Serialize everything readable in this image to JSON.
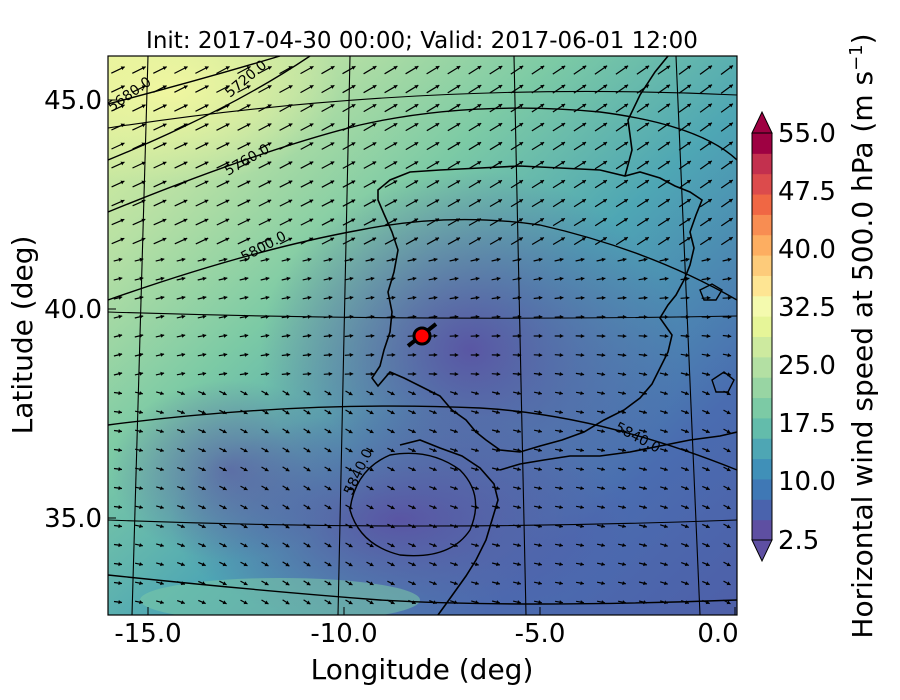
{
  "title": "Init: 2017-04-30 00:00; Valid: 2017-06-01 12:00",
  "x_axis": {
    "label": "Longitude (deg)",
    "ticks": [
      "-15.0",
      "-10.0",
      "-5.0",
      "0.0"
    ],
    "range": [
      -15.9,
      0.1
    ]
  },
  "y_axis": {
    "label": "Latitude (deg)",
    "ticks": [
      "35.0",
      "40.0",
      "45.0"
    ],
    "range": [
      32.6,
      46.0
    ]
  },
  "colorbar": {
    "label_text": "Horizontal wind speed at 500.0 hPa (m s",
    "label_exponent": "−1",
    "label_close": ")",
    "ticks": [
      "2.5",
      "10.0",
      "17.5",
      "25.0",
      "32.5",
      "40.0",
      "47.5",
      "55.0"
    ],
    "range": [
      2.5,
      55.0
    ],
    "extend": "both",
    "colors": [
      "#5e4fa2",
      "#4a63ad",
      "#3f78b5",
      "#4090b8",
      "#4ea6b4",
      "#63bcab",
      "#7ccaa5",
      "#98d5a3",
      "#b3e0a3",
      "#cdea9f",
      "#e6f598",
      "#f4faae",
      "#fee593",
      "#fdcb7a",
      "#fdae61",
      "#f88d52",
      "#f06744",
      "#dc4b4c",
      "#c3304e",
      "#9e0142"
    ]
  },
  "contours": {
    "labels": [
      "5680.0",
      "5720.0",
      "5760.0",
      "5800.0",
      "5840.0",
      "5840.0"
    ],
    "color": "#000000"
  },
  "marker": {
    "name": "point-location",
    "lon": -7.7,
    "lat": 39.35,
    "color": "#ff0000"
  },
  "grid": true
}
